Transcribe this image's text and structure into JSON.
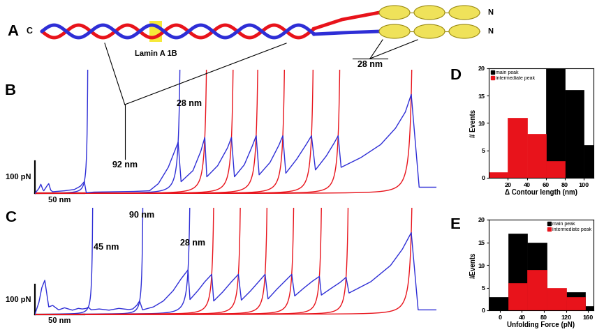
{
  "diagram": {
    "panel": "A",
    "c_terminus": "C",
    "n_terminus": "N",
    "segment_label": "Lamin A 1B",
    "bracket_label": "28 nm"
  },
  "chart_data": [
    {
      "panel": "B",
      "type": "line",
      "tick_labels": false,
      "xlim": [
        0,
        410
      ],
      "ylim": [
        -10,
        380
      ],
      "x": [
        0,
        4,
        6,
        8,
        9,
        12,
        14,
        16,
        18,
        22,
        30,
        40,
        46,
        50,
        52,
        60,
        80,
        100,
        116,
        125,
        135,
        145,
        148,
        160,
        168,
        172,
        174,
        185,
        195,
        199,
        202,
        212,
        220,
        224,
        227,
        238,
        247,
        251,
        254,
        265,
        275,
        280,
        284,
        295,
        303,
        307,
        310,
        330,
        350,
        365,
        375,
        381,
        389,
        406
      ],
      "series": [
        {
          "color": "#2e2ed6",
          "values": [
            0,
            15,
            28,
            12,
            8,
            22,
            30,
            10,
            5,
            6,
            8,
            12,
            22,
            36,
            2,
            4,
            5,
            6,
            8,
            30,
            80,
            157,
            36,
            70,
            130,
            172,
            51,
            85,
            140,
            172,
            51,
            88,
            145,
            177,
            57,
            95,
            148,
            177,
            62,
            105,
            152,
            177,
            72,
            115,
            155,
            177,
            80,
            110,
            150,
            200,
            250,
            304,
            19,
            19
          ]
        }
      ],
      "fits": [
        {
          "color": "#2e2ed6",
          "contour_length": 55,
          "x": 50,
          "force": 36
        },
        {
          "color": "#2e2ed6",
          "contour_length": 150,
          "x": 145,
          "force": 157
        },
        {
          "color": "#e8131b",
          "contour_length": 177,
          "x": 172,
          "force": 172
        },
        {
          "color": "#e8131b",
          "contour_length": 204,
          "x": 199,
          "force": 172
        },
        {
          "color": "#e8131b",
          "contour_length": 229,
          "x": 224,
          "force": 177
        },
        {
          "color": "#e8131b",
          "contour_length": 256,
          "x": 251,
          "force": 177
        },
        {
          "color": "#e8131b",
          "contour_length": 285,
          "x": 280,
          "force": 177
        },
        {
          "color": "#e8131b",
          "contour_length": 312,
          "x": 307,
          "force": 177
        },
        {
          "color": "#e8131b",
          "contour_length": 386,
          "x": 381,
          "force": 304
        }
      ],
      "annotations": [
        "92 nm",
        "28 nm"
      ],
      "scale_bars": {
        "x": {
          "value": 50,
          "label": "50 nm"
        },
        "y": {
          "value": 100,
          "label": "100 pN"
        }
      }
    },
    {
      "panel": "C",
      "type": "line",
      "tick_labels": false,
      "xlim": [
        0,
        410
      ],
      "ylim": [
        -10,
        360
      ],
      "x": [
        0,
        4,
        7,
        10,
        14,
        18,
        24,
        30,
        38,
        44,
        48,
        52,
        54,
        57,
        65,
        75,
        85,
        95,
        99,
        103,
        106,
        109,
        120,
        130,
        140,
        148,
        155,
        157,
        165,
        172,
        179,
        181,
        190,
        199,
        206,
        209,
        218,
        227,
        233,
        236,
        245,
        254,
        260,
        263,
        272,
        281,
        288,
        290,
        300,
        309,
        315,
        318,
        340,
        360,
        372,
        381,
        388,
        406
      ],
      "series": [
        {
          "color": "#2e2ed6",
          "values": [
            0,
            40,
            90,
            115,
            25,
            30,
            15,
            22,
            14,
            20,
            18,
            20,
            24,
            15,
            18,
            14,
            20,
            16,
            18,
            30,
            45,
            15,
            25,
            45,
            80,
            120,
            150,
            50,
            80,
            110,
            135,
            45,
            75,
            110,
            135,
            48,
            78,
            112,
            135,
            52,
            85,
            115,
            135,
            62,
            88,
            112,
            128,
            65,
            88,
            108,
            125,
            72,
            110,
            165,
            220,
            276,
            15,
            15
          ]
        }
      ],
      "fits": [
        {
          "color": "#2e2ed6",
          "contour_length": 60,
          "x": 54,
          "force": 24
        },
        {
          "color": "#2e2ed6",
          "contour_length": 111,
          "x": 106,
          "force": 45
        },
        {
          "color": "#2e2ed6",
          "contour_length": 160,
          "x": 155,
          "force": 150
        },
        {
          "color": "#e8131b",
          "contour_length": 184,
          "x": 179,
          "force": 135
        },
        {
          "color": "#e8131b",
          "contour_length": 211,
          "x": 206,
          "force": 135
        },
        {
          "color": "#e8131b",
          "contour_length": 238,
          "x": 233,
          "force": 135
        },
        {
          "color": "#e8131b",
          "contour_length": 265,
          "x": 260,
          "force": 135
        },
        {
          "color": "#e8131b",
          "contour_length": 293,
          "x": 288,
          "force": 128
        },
        {
          "color": "#e8131b",
          "contour_length": 320,
          "x": 315,
          "force": 125
        },
        {
          "color": "#e8131b",
          "contour_length": 386,
          "x": 381,
          "force": 276
        }
      ],
      "annotations": [
        "90 nm",
        "45 nm",
        "28 nm"
      ],
      "scale_bars": {
        "x": {
          "value": 50,
          "label": "50 nm"
        },
        "y": {
          "value": 100,
          "label": "100 pN"
        }
      }
    },
    {
      "panel": "D",
      "type": "histogram",
      "x_label": "Δ Contour length (nm)",
      "y_label": "# Events",
      "bins": [
        0,
        20,
        40,
        60,
        80,
        100,
        120
      ],
      "series": [
        {
          "name": "main peak",
          "color": "#000000",
          "values": [
            0,
            0,
            0,
            20,
            16,
            6
          ]
        },
        {
          "name": "intermediate peak",
          "color": "#e8131b",
          "values": [
            1,
            11,
            8,
            3,
            0,
            0
          ]
        }
      ],
      "xlim": [
        0,
        110
      ],
      "xticks": [
        20,
        40,
        60,
        80,
        100
      ],
      "ylim": [
        0,
        20
      ],
      "yticks": [
        0,
        5,
        10,
        15,
        20
      ],
      "legend": "upper left"
    },
    {
      "panel": "E",
      "type": "histogram",
      "x_label": "Unfolding Force (pN)",
      "y_label": "#Events",
      "bins": [
        -20,
        15,
        50,
        85,
        120,
        155,
        190
      ],
      "series": [
        {
          "name": "main peak",
          "color": "#000000",
          "values": [
            3,
            17,
            15,
            2,
            4,
            1
          ]
        },
        {
          "name": "intermediate peak",
          "color": "#e8131b",
          "values": [
            0,
            6,
            9,
            5,
            3,
            0
          ]
        }
      ],
      "xlim": [
        -20,
        170
      ],
      "xticks": [
        0,
        40,
        80,
        120,
        160
      ],
      "ylim": [
        0,
        20
      ],
      "yticks": [
        0,
        5,
        10,
        15,
        20
      ],
      "legend": "upper right"
    }
  ]
}
